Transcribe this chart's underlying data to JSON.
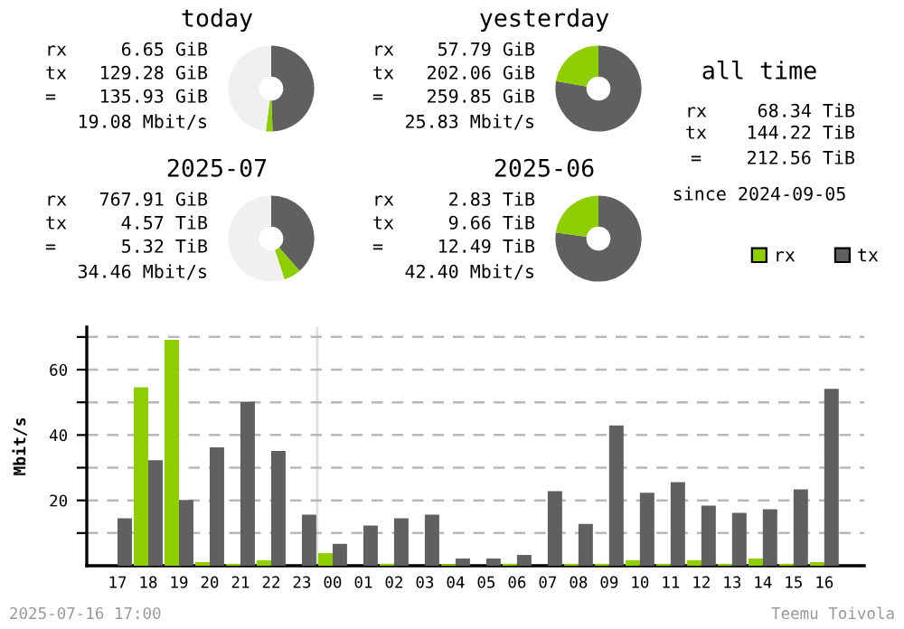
{
  "chart_data": [
    {
      "type": "donut",
      "title": "today",
      "categories": [
        null,
        null,
        null
      ],
      "values": [
        49.5,
        2.5,
        48
      ],
      "colors": [
        "#606060",
        "#8fce00",
        "#f0f0f0"
      ],
      "annotations": [
        "rx",
        "6.65 GiB",
        "tx",
        "129.28 GiB",
        "=",
        "135.93 GiB",
        "19.08 Mbit/s"
      ]
    },
    {
      "type": "donut",
      "title": "yesterday",
      "categories": [
        null,
        null
      ],
      "values": [
        77.8,
        22.2
      ],
      "colors": [
        "#606060",
        "#8fce00"
      ],
      "annotations": [
        "rx",
        "57.79 GiB",
        "tx",
        "202.06 GiB",
        "=",
        "259.85 GiB",
        "25.83 Mbit/s"
      ]
    },
    {
      "type": "donut",
      "title": "2025-07",
      "categories": [
        null,
        null,
        null
      ],
      "values": [
        38.5,
        6.5,
        55
      ],
      "colors": [
        "#606060",
        "#8fce00",
        "#f0f0f0"
      ],
      "annotations": [
        "rx",
        "767.91 GiB",
        "tx",
        "4.57 TiB",
        "=",
        "5.32 TiB",
        "34.46 Mbit/s"
      ]
    },
    {
      "type": "donut",
      "title": "2025-06",
      "categories": [
        null,
        null
      ],
      "values": [
        77.3,
        22.7
      ],
      "colors": [
        "#606060",
        "#8fce00"
      ],
      "annotations": [
        "rx",
        "2.83 TiB",
        "tx",
        "9.66 TiB",
        "=",
        "12.49 TiB",
        "42.40 Mbit/s"
      ]
    },
    {
      "type": "other",
      "title": "all time",
      "annotations": [
        "rx",
        "68.34 TiB",
        "tx",
        "144.22 TiB",
        "=",
        "212.56 TiB",
        "since 2024-09-05"
      ]
    },
    {
      "type": "bar",
      "ylabel": "Mbit/s",
      "categories": [
        "17",
        "18",
        "19",
        "20",
        "21",
        "22",
        "23",
        "00",
        "01",
        "02",
        "03",
        "04",
        "05",
        "06",
        "07",
        "08",
        "09",
        "10",
        "11",
        "12",
        "13",
        "14",
        "15",
        "16"
      ],
      "series": [
        {
          "name": "rx",
          "color": "#8fce00",
          "values": [
            0,
            54.6,
            69.1,
            1.1,
            0.6,
            1.7,
            0,
            3.9,
            0,
            0.6,
            0,
            0.5,
            0,
            0.6,
            0,
            0.6,
            0.6,
            1.7,
            0.6,
            1.7,
            0.6,
            2.2,
            0.6,
            1.1
          ]
        },
        {
          "name": "tx",
          "color": "#606060",
          "values": [
            14.5,
            32.3,
            20.1,
            36.2,
            50.2,
            35.1,
            15.6,
            6.7,
            12.3,
            14.5,
            15.6,
            2.2,
            2.2,
            3.3,
            22.8,
            12.8,
            42.9,
            22.3,
            25.6,
            18.4,
            16.2,
            17.3,
            23.4,
            54.1
          ]
        }
      ],
      "ylim": [
        0,
        73
      ],
      "yticks": [
        {
          "value": 10,
          "label": null
        },
        20,
        {
          "value": 30,
          "label": null
        },
        40,
        {
          "value": 50,
          "label": null
        },
        60,
        {
          "value": 70,
          "label": null
        }
      ],
      "grid": "y",
      "legend": "top right",
      "ref_lines": [
        {
          "axis": "x",
          "value": "00",
          "color": "#e0e0e0"
        }
      ],
      "annotations": [
        "2025-07-16 17:00",
        "Teemu Toivola"
      ]
    }
  ]
}
